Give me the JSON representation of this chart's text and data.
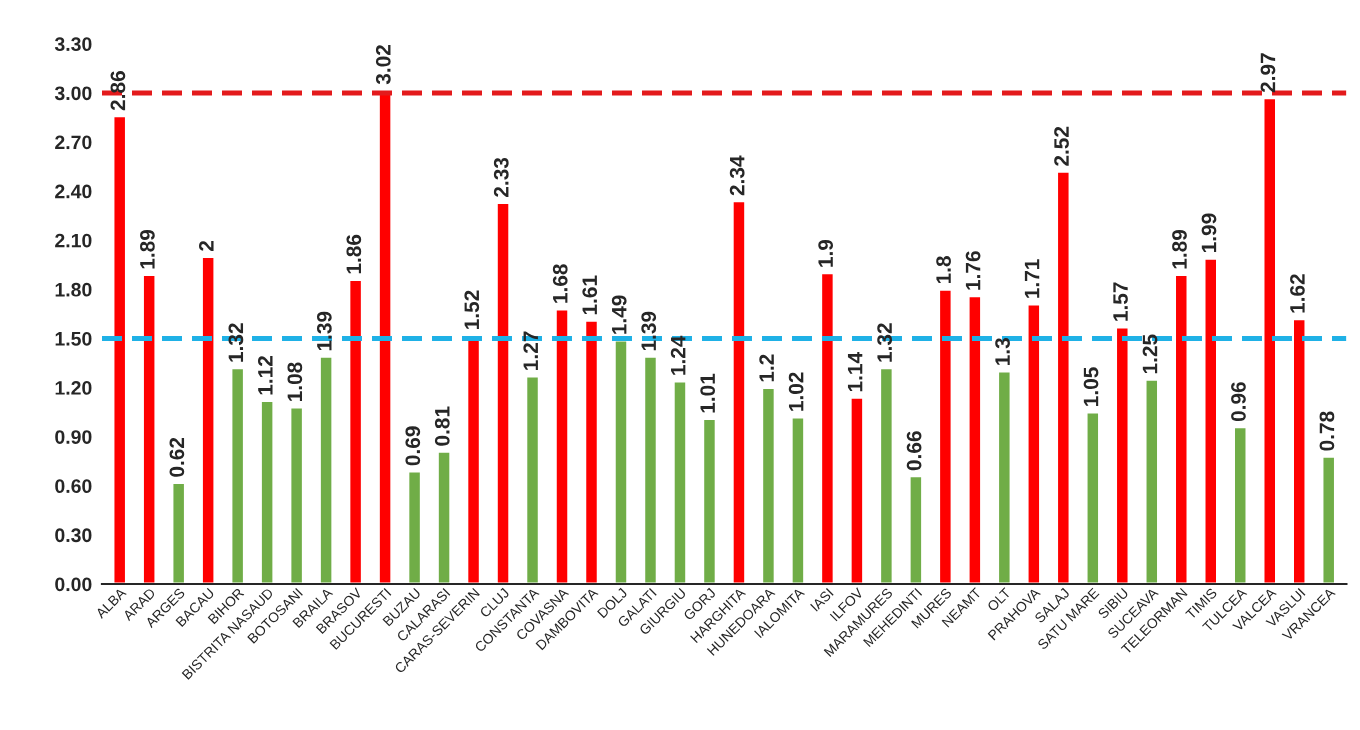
{
  "chart_data": {
    "type": "bar",
    "categories": [
      "ALBA",
      "ARAD",
      "ARGES",
      "BACAU",
      "BIHOR",
      "BISTRITA NASAUD",
      "BOTOSANI",
      "BRAILA",
      "BRASOV",
      "BUCURESTI",
      "BUZAU",
      "CALARASI",
      "CARAS-SEVERIN",
      "CLUJ",
      "CONSTANTA",
      "COVASNA",
      "DAMBOVITA",
      "DOLJ",
      "GALATI",
      "GIURGIU",
      "GORJ",
      "HARGHITA",
      "HUNEDOARA",
      "IALOMITA",
      "IASI",
      "ILFOV",
      "MARAMURES",
      "MEHEDINTI",
      "MURES",
      "NEAMT",
      "OLT",
      "PRAHOVA",
      "SALAJ",
      "SATU MARE",
      "SIBIU",
      "SUCEAVA",
      "TELEORMAN",
      "TIMIS",
      "TULCEA",
      "VALCEA",
      "VASLUI",
      "VRANCEA"
    ],
    "values": [
      2.86,
      1.89,
      0.62,
      2,
      1.32,
      1.12,
      1.08,
      1.39,
      1.86,
      3.02,
      0.69,
      0.81,
      1.52,
      2.33,
      1.27,
      1.68,
      1.61,
      1.49,
      1.39,
      1.24,
      1.01,
      2.34,
      1.2,
      1.02,
      1.9,
      1.14,
      1.32,
      0.66,
      1.8,
      1.76,
      1.3,
      1.71,
      2.52,
      1.05,
      1.57,
      1.25,
      1.89,
      1.99,
      0.96,
      2.97,
      1.62,
      0.78
    ],
    "colors": [
      "#ff0000",
      "#ff0000",
      "#70ad47",
      "#ff0000",
      "#70ad47",
      "#70ad47",
      "#70ad47",
      "#70ad47",
      "#ff0000",
      "#ff0000",
      "#70ad47",
      "#70ad47",
      "#ff0000",
      "#ff0000",
      "#70ad47",
      "#ff0000",
      "#ff0000",
      "#70ad47",
      "#70ad47",
      "#70ad47",
      "#70ad47",
      "#ff0000",
      "#70ad47",
      "#70ad47",
      "#ff0000",
      "#ff0000",
      "#70ad47",
      "#70ad47",
      "#ff0000",
      "#ff0000",
      "#70ad47",
      "#ff0000",
      "#ff0000",
      "#70ad47",
      "#ff0000",
      "#70ad47",
      "#ff0000",
      "#ff0000",
      "#70ad47",
      "#ff0000",
      "#ff0000",
      "#70ad47"
    ],
    "ylim": [
      0,
      3.3
    ],
    "yticks": [
      {
        "value": 0,
        "label": "0.00"
      },
      {
        "value": 0.3,
        "label": "0.30"
      },
      {
        "value": 0.6,
        "label": "0.60"
      },
      {
        "value": 0.9,
        "label": "0.90"
      },
      {
        "value": 1.2,
        "label": "1.20"
      },
      {
        "value": 1.5,
        "label": "1.50"
      },
      {
        "value": 1.8,
        "label": "1.80"
      },
      {
        "value": 2.1,
        "label": "2.10"
      },
      {
        "value": 2.4,
        "label": "2.40"
      },
      {
        "value": 2.7,
        "label": "2.70"
      },
      {
        "value": 3.0,
        "label": "3.00"
      },
      {
        "value": 3.3,
        "label": "3.30"
      }
    ],
    "ref_lines": [
      {
        "axis": "y",
        "value": 3.0,
        "color": "#e31a1c",
        "line_style": "dashed"
      },
      {
        "axis": "y",
        "value": 1.5,
        "color": "#1fb1e6",
        "line_style": "dashed"
      }
    ],
    "data_labels": true,
    "grid": false
  }
}
